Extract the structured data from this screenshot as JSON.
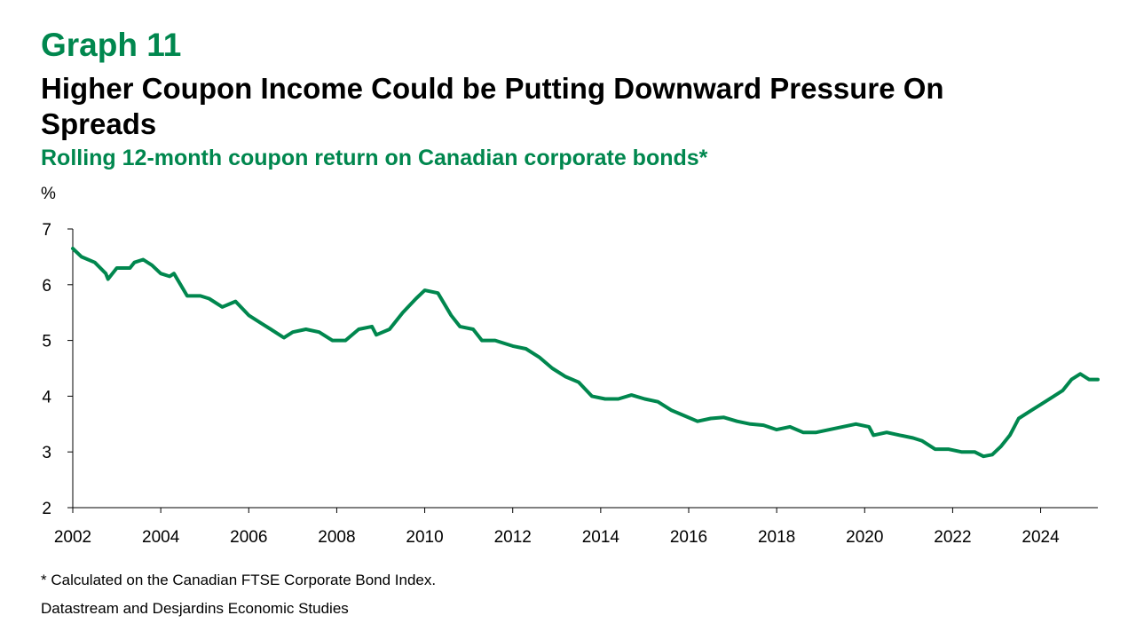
{
  "header": {
    "graph_label": "Graph 11",
    "title": "Higher Coupon Income Could be Putting Downward Pressure On Spreads",
    "subtitle": "Rolling 12-month coupon return on Canadian corporate bonds*"
  },
  "footer": {
    "footnote": "* Calculated on the Canadian FTSE Corporate Bond Index.",
    "source": "Datastream and Desjardins Economic Studies"
  },
  "colors": {
    "accent": "#00874E",
    "series": "#00874E",
    "axis": "#000000"
  },
  "chart_data": {
    "type": "line",
    "title": "Rolling 12-month coupon return on Canadian corporate bonds*",
    "xlabel": "",
    "ylabel": "%",
    "xlim": [
      2002,
      2025.3
    ],
    "ylim": [
      2,
      7
    ],
    "xticks": [
      "2002",
      "2004",
      "2006",
      "2008",
      "2010",
      "2012",
      "2014",
      "2016",
      "2018",
      "2020",
      "2022",
      "2024"
    ],
    "yticks": [
      "2",
      "3",
      "4",
      "5",
      "6",
      "7"
    ],
    "grid": false,
    "legend": "none",
    "series": [
      {
        "x": [
          2002.0,
          2002.2,
          2002.5,
          2002.75,
          2002.8,
          2003.0,
          2003.3,
          2003.4,
          2003.6,
          2003.8,
          2004.0,
          2004.2,
          2004.3,
          2004.6,
          2004.9,
          2005.1,
          2005.4,
          2005.7,
          2006.0,
          2006.3,
          2006.5,
          2006.8,
          2007.0,
          2007.3,
          2007.6,
          2007.9,
          2008.2,
          2008.5,
          2008.8,
          2008.9,
          2009.2,
          2009.5,
          2009.8,
          2010.0,
          2010.3,
          2010.6,
          2010.8,
          2011.1,
          2011.3,
          2011.6,
          2012.0,
          2012.3,
          2012.6,
          2012.9,
          2013.2,
          2013.5,
          2013.8,
          2014.1,
          2014.4,
          2014.7,
          2015.0,
          2015.3,
          2015.6,
          2015.9,
          2016.2,
          2016.5,
          2016.8,
          2017.1,
          2017.4,
          2017.7,
          2018.0,
          2018.3,
          2018.6,
          2018.9,
          2019.2,
          2019.5,
          2019.8,
          2020.1,
          2020.2,
          2020.5,
          2020.8,
          2021.1,
          2021.3,
          2021.6,
          2021.9,
          2022.2,
          2022.5,
          2022.7,
          2022.9,
          2023.1,
          2023.3,
          2023.5,
          2023.8,
          2024.0,
          2024.3,
          2024.5,
          2024.7,
          2024.9,
          2025.1,
          2025.3
        ],
        "values": [
          6.65,
          6.5,
          6.4,
          6.2,
          6.1,
          6.3,
          6.3,
          6.4,
          6.45,
          6.35,
          6.2,
          6.15,
          6.2,
          5.8,
          5.8,
          5.75,
          5.6,
          5.7,
          5.45,
          5.3,
          5.2,
          5.05,
          5.15,
          5.2,
          5.15,
          5.0,
          5.0,
          5.2,
          5.25,
          5.1,
          5.2,
          5.5,
          5.75,
          5.9,
          5.85,
          5.45,
          5.25,
          5.2,
          5.0,
          5.0,
          4.9,
          4.85,
          4.7,
          4.5,
          4.35,
          4.25,
          4.0,
          3.95,
          3.95,
          4.02,
          3.95,
          3.9,
          3.75,
          3.65,
          3.55,
          3.6,
          3.62,
          3.55,
          3.5,
          3.48,
          3.4,
          3.45,
          3.35,
          3.35,
          3.4,
          3.45,
          3.5,
          3.45,
          3.3,
          3.35,
          3.3,
          3.25,
          3.2,
          3.05,
          3.05,
          3.0,
          3.0,
          2.92,
          2.95,
          3.1,
          3.3,
          3.6,
          3.75,
          3.85,
          4.0,
          4.1,
          4.3,
          4.4,
          4.3,
          4.3
        ]
      }
    ]
  }
}
